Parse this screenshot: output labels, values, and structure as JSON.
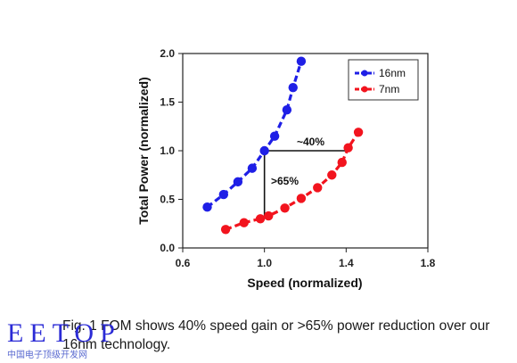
{
  "chart_data": {
    "type": "scatter",
    "xlabel": "Speed (normalized)",
    "ylabel": "Total Power (normalized)",
    "xlim": [
      0.6,
      1.8
    ],
    "ylim": [
      0.0,
      2.0
    ],
    "xticks": [
      "0.6",
      "1.0",
      "1.4",
      "1.8"
    ],
    "yticks": [
      "0.0",
      "0.5",
      "1.0",
      "1.5",
      "2.0"
    ],
    "legend_position": "top-right",
    "series": [
      {
        "name": "16nm",
        "color": "#1f1fe6",
        "x": [
          0.72,
          0.8,
          0.87,
          0.94,
          1.0,
          1.05,
          1.11,
          1.14,
          1.18
        ],
        "y": [
          0.42,
          0.55,
          0.68,
          0.82,
          1.0,
          1.15,
          1.42,
          1.65,
          1.92
        ]
      },
      {
        "name": "7nm",
        "color": "#f2141e",
        "x": [
          0.81,
          0.9,
          0.98,
          1.02,
          1.1,
          1.18,
          1.26,
          1.33,
          1.38,
          1.41,
          1.46
        ],
        "y": [
          0.19,
          0.26,
          0.3,
          0.33,
          0.41,
          0.51,
          0.62,
          0.75,
          0.88,
          1.03,
          1.19
        ]
      }
    ],
    "annotations": [
      "~40%",
      ">65%"
    ]
  },
  "caption": "Fig. 1 FOM shows 40% speed gain or >65% power reduction over our 16nm technology.",
  "watermark": {
    "text": "EETOP",
    "subtext": "中国电子顶级开发网"
  }
}
